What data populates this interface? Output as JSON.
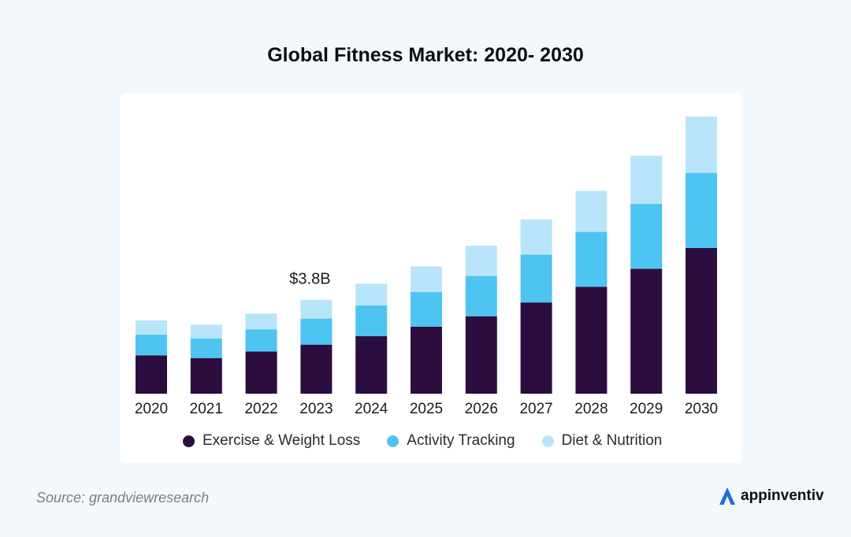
{
  "chart_data": {
    "type": "bar",
    "stacked": true,
    "title": "Global Fitness Market: 2020- 2030",
    "categories": [
      "2020",
      "2021",
      "2022",
      "2023",
      "2024",
      "2025",
      "2026",
      "2027",
      "2028",
      "2029",
      "2030"
    ],
    "series": [
      {
        "name": "Exercise & Weight Loss",
        "color": "#2c0d3f",
        "values": [
          1.0,
          0.93,
          1.1,
          1.28,
          1.5,
          1.75,
          2.02,
          2.38,
          2.79,
          3.26,
          3.8
        ]
      },
      {
        "name": "Activity Tracking",
        "color": "#4ec4f2",
        "values": [
          0.54,
          0.51,
          0.58,
          0.68,
          0.8,
          0.9,
          1.05,
          1.25,
          1.43,
          1.69,
          1.96
        ]
      },
      {
        "name": "Diet & Nutrition",
        "color": "#b9e5fa",
        "values": [
          0.37,
          0.36,
          0.41,
          0.49,
          0.57,
          0.67,
          0.79,
          0.92,
          1.07,
          1.26,
          1.47
        ]
      }
    ],
    "annotations": [
      {
        "category": "2023",
        "text": "$3.8B"
      }
    ],
    "ylim": [
      0,
      7.6
    ],
    "xlabel": "",
    "ylabel": "",
    "grid": false,
    "legend_position": "bottom"
  },
  "footer": {
    "source": "Source: grandviewresearch",
    "brand": "appinventiv"
  },
  "brand_color": "#1f6fd6"
}
